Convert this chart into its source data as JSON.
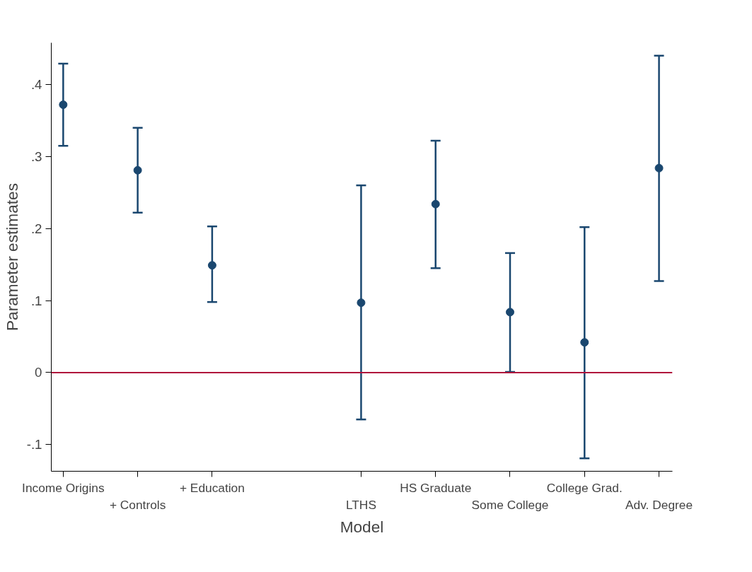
{
  "chart_data": {
    "type": "scatter",
    "xlabel": "Model",
    "ylabel": "Parameter estimates",
    "categories": [
      "Income Origins",
      "+ Controls",
      "+ Education",
      null,
      "LTHS",
      "HS Graduate",
      "Some College",
      "College Grad.",
      "Adv. Degree"
    ],
    "values": [
      0.372,
      0.281,
      0.149,
      null,
      0.097,
      0.234,
      0.084,
      0.042,
      0.284
    ],
    "errors": [
      [
        0.315,
        0.429
      ],
      [
        0.222,
        0.34
      ],
      [
        0.098,
        0.203
      ],
      null,
      [
        -0.065,
        0.26
      ],
      [
        0.145,
        0.322
      ],
      [
        0.001,
        0.166
      ],
      [
        -0.119,
        0.202
      ],
      [
        0.127,
        0.44
      ]
    ],
    "color": "#1a476f",
    "marker": "circle",
    "grid": false,
    "ylim": [
      -0.137,
      0.458
    ],
    "yticks": [
      {
        "value": -0.1,
        "label": "-.1"
      },
      {
        "value": 0,
        "label": "0"
      },
      {
        "value": 0.1,
        "label": ".1"
      },
      {
        "value": 0.2,
        "label": ".2"
      },
      {
        "value": 0.3,
        "label": ".3"
      },
      {
        "value": 0.4,
        "label": ".4"
      }
    ],
    "ref_lines": [
      {
        "axis": "y",
        "value": 0,
        "color": "#b0103b"
      }
    ]
  }
}
